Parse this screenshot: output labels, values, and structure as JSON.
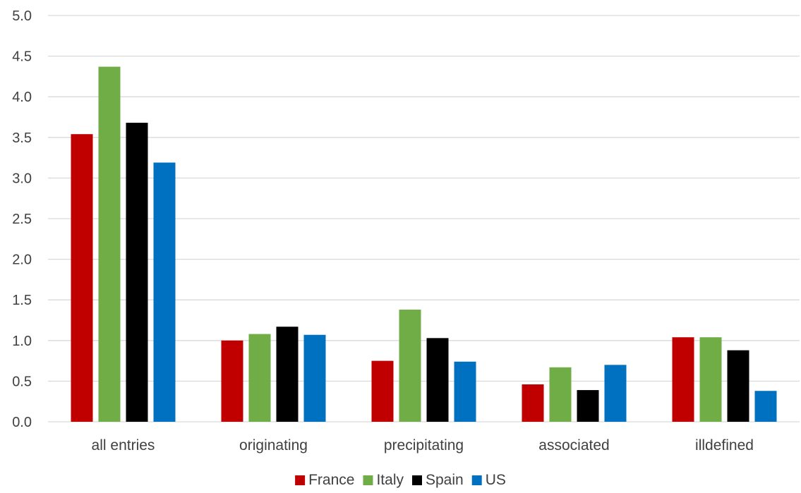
{
  "chart_data": {
    "type": "bar",
    "title": "",
    "xlabel": "",
    "ylabel": "",
    "ylim": [
      0,
      5
    ],
    "yticks": [
      "0.0",
      "0.5",
      "1.0",
      "1.5",
      "2.0",
      "2.5",
      "3.0",
      "3.5",
      "4.0",
      "4.5",
      "5.0"
    ],
    "grid": true,
    "legend_position": "bottom",
    "categories": [
      "all entries",
      "originating",
      "precipitating",
      "associated",
      "illdefined"
    ],
    "series": [
      {
        "name": "France",
        "color": "#c00000",
        "values": [
          3.54,
          1.0,
          0.75,
          0.46,
          1.04
        ]
      },
      {
        "name": "Italy",
        "color": "#70ad47",
        "values": [
          4.37,
          1.08,
          1.38,
          0.67,
          1.04
        ]
      },
      {
        "name": "Spain",
        "color": "#000000",
        "values": [
          3.68,
          1.17,
          1.03,
          0.39,
          0.88
        ]
      },
      {
        "name": "US",
        "color": "#0070c0",
        "values": [
          3.19,
          1.07,
          0.74,
          0.7,
          0.38
        ]
      }
    ]
  }
}
